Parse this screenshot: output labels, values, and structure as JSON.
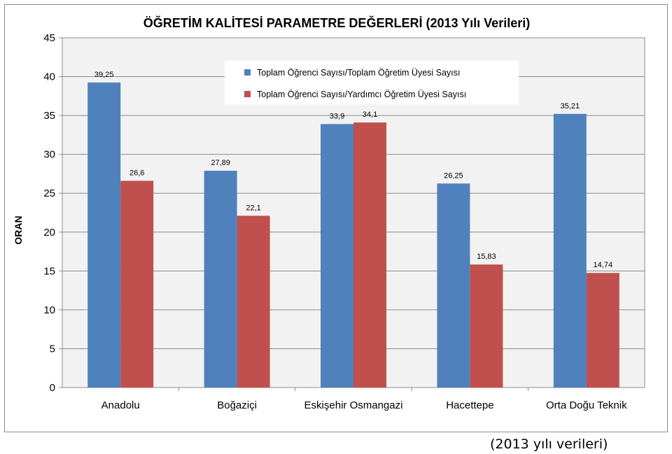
{
  "chart_data": {
    "type": "bar",
    "title": "ÖĞRETİM KALİTESİ PARAMETRE DEĞERLERİ (2013 Yılı Verileri)",
    "xlabel": "",
    "ylabel": "ORAN",
    "ylim": [
      0,
      45
    ],
    "yticks": [
      "0",
      "5",
      "10",
      "15",
      "20",
      "25",
      "30",
      "35",
      "40",
      "45"
    ],
    "categories": [
      "Anadolu",
      "Boğaziçi",
      "Eskişehir Osmangazi",
      "Hacettepe",
      "Orta Doğu Teknik"
    ],
    "series": [
      {
        "name": "Toplam Öğrenci Sayısı/Toplam Öğretim Üyesi Sayısı",
        "color": "#4f81bd",
        "values": [
          39.25,
          27.89,
          33.9,
          26.25,
          35.21
        ],
        "labels": [
          "39,25",
          "27,89",
          "33,9",
          "26,25",
          "35,21"
        ]
      },
      {
        "name": "Toplam Öğrenci Sayısı/Yardımcı Öğretim Üyesi Sayısı",
        "color": "#c0504d",
        "values": [
          26.6,
          22.1,
          34.1,
          15.83,
          14.74
        ],
        "labels": [
          "26,6",
          "22,1",
          "34,1",
          "15,83",
          "14,74"
        ]
      }
    ],
    "grid": true,
    "plot_background": "#f2f2f2",
    "legend_position": "top-center"
  },
  "caption": "(2013 yılı verileri)"
}
